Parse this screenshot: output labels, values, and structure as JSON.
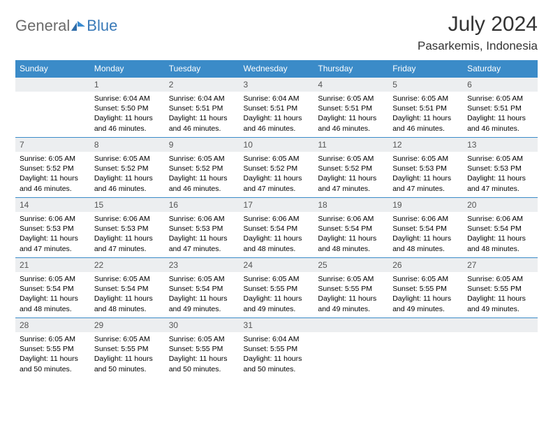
{
  "brand": {
    "word1": "General",
    "word2": "Blue"
  },
  "title": "July 2024",
  "location": "Pasarkemis, Indonesia",
  "colors": {
    "header_bg": "#3b8bc8",
    "header_fg": "#ffffff",
    "daynum_bg": "#eceef0",
    "border": "#3b8bc8",
    "logo_gray": "#6b6b6b",
    "logo_blue": "#3a7ab8"
  },
  "fonts": {
    "title_size": 30,
    "location_size": 17,
    "header_size": 12,
    "daynum_size": 12,
    "body_size": 10.5
  },
  "weekday_labels": [
    "Sunday",
    "Monday",
    "Tuesday",
    "Wednesday",
    "Thursday",
    "Friday",
    "Saturday"
  ],
  "weeks": [
    [
      {
        "n": "",
        "lines": []
      },
      {
        "n": "1",
        "lines": [
          "Sunrise: 6:04 AM",
          "Sunset: 5:50 PM",
          "Daylight: 11 hours and 46 minutes."
        ]
      },
      {
        "n": "2",
        "lines": [
          "Sunrise: 6:04 AM",
          "Sunset: 5:51 PM",
          "Daylight: 11 hours and 46 minutes."
        ]
      },
      {
        "n": "3",
        "lines": [
          "Sunrise: 6:04 AM",
          "Sunset: 5:51 PM",
          "Daylight: 11 hours and 46 minutes."
        ]
      },
      {
        "n": "4",
        "lines": [
          "Sunrise: 6:05 AM",
          "Sunset: 5:51 PM",
          "Daylight: 11 hours and 46 minutes."
        ]
      },
      {
        "n": "5",
        "lines": [
          "Sunrise: 6:05 AM",
          "Sunset: 5:51 PM",
          "Daylight: 11 hours and 46 minutes."
        ]
      },
      {
        "n": "6",
        "lines": [
          "Sunrise: 6:05 AM",
          "Sunset: 5:51 PM",
          "Daylight: 11 hours and 46 minutes."
        ]
      }
    ],
    [
      {
        "n": "7",
        "lines": [
          "Sunrise: 6:05 AM",
          "Sunset: 5:52 PM",
          "Daylight: 11 hours and 46 minutes."
        ]
      },
      {
        "n": "8",
        "lines": [
          "Sunrise: 6:05 AM",
          "Sunset: 5:52 PM",
          "Daylight: 11 hours and 46 minutes."
        ]
      },
      {
        "n": "9",
        "lines": [
          "Sunrise: 6:05 AM",
          "Sunset: 5:52 PM",
          "Daylight: 11 hours and 46 minutes."
        ]
      },
      {
        "n": "10",
        "lines": [
          "Sunrise: 6:05 AM",
          "Sunset: 5:52 PM",
          "Daylight: 11 hours and 47 minutes."
        ]
      },
      {
        "n": "11",
        "lines": [
          "Sunrise: 6:05 AM",
          "Sunset: 5:52 PM",
          "Daylight: 11 hours and 47 minutes."
        ]
      },
      {
        "n": "12",
        "lines": [
          "Sunrise: 6:05 AM",
          "Sunset: 5:53 PM",
          "Daylight: 11 hours and 47 minutes."
        ]
      },
      {
        "n": "13",
        "lines": [
          "Sunrise: 6:05 AM",
          "Sunset: 5:53 PM",
          "Daylight: 11 hours and 47 minutes."
        ]
      }
    ],
    [
      {
        "n": "14",
        "lines": [
          "Sunrise: 6:06 AM",
          "Sunset: 5:53 PM",
          "Daylight: 11 hours and 47 minutes."
        ]
      },
      {
        "n": "15",
        "lines": [
          "Sunrise: 6:06 AM",
          "Sunset: 5:53 PM",
          "Daylight: 11 hours and 47 minutes."
        ]
      },
      {
        "n": "16",
        "lines": [
          "Sunrise: 6:06 AM",
          "Sunset: 5:53 PM",
          "Daylight: 11 hours and 47 minutes."
        ]
      },
      {
        "n": "17",
        "lines": [
          "Sunrise: 6:06 AM",
          "Sunset: 5:54 PM",
          "Daylight: 11 hours and 48 minutes."
        ]
      },
      {
        "n": "18",
        "lines": [
          "Sunrise: 6:06 AM",
          "Sunset: 5:54 PM",
          "Daylight: 11 hours and 48 minutes."
        ]
      },
      {
        "n": "19",
        "lines": [
          "Sunrise: 6:06 AM",
          "Sunset: 5:54 PM",
          "Daylight: 11 hours and 48 minutes."
        ]
      },
      {
        "n": "20",
        "lines": [
          "Sunrise: 6:06 AM",
          "Sunset: 5:54 PM",
          "Daylight: 11 hours and 48 minutes."
        ]
      }
    ],
    [
      {
        "n": "21",
        "lines": [
          "Sunrise: 6:05 AM",
          "Sunset: 5:54 PM",
          "Daylight: 11 hours and 48 minutes."
        ]
      },
      {
        "n": "22",
        "lines": [
          "Sunrise: 6:05 AM",
          "Sunset: 5:54 PM",
          "Daylight: 11 hours and 48 minutes."
        ]
      },
      {
        "n": "23",
        "lines": [
          "Sunrise: 6:05 AM",
          "Sunset: 5:54 PM",
          "Daylight: 11 hours and 49 minutes."
        ]
      },
      {
        "n": "24",
        "lines": [
          "Sunrise: 6:05 AM",
          "Sunset: 5:55 PM",
          "Daylight: 11 hours and 49 minutes."
        ]
      },
      {
        "n": "25",
        "lines": [
          "Sunrise: 6:05 AM",
          "Sunset: 5:55 PM",
          "Daylight: 11 hours and 49 minutes."
        ]
      },
      {
        "n": "26",
        "lines": [
          "Sunrise: 6:05 AM",
          "Sunset: 5:55 PM",
          "Daylight: 11 hours and 49 minutes."
        ]
      },
      {
        "n": "27",
        "lines": [
          "Sunrise: 6:05 AM",
          "Sunset: 5:55 PM",
          "Daylight: 11 hours and 49 minutes."
        ]
      }
    ],
    [
      {
        "n": "28",
        "lines": [
          "Sunrise: 6:05 AM",
          "Sunset: 5:55 PM",
          "Daylight: 11 hours and 50 minutes."
        ]
      },
      {
        "n": "29",
        "lines": [
          "Sunrise: 6:05 AM",
          "Sunset: 5:55 PM",
          "Daylight: 11 hours and 50 minutes."
        ]
      },
      {
        "n": "30",
        "lines": [
          "Sunrise: 6:05 AM",
          "Sunset: 5:55 PM",
          "Daylight: 11 hours and 50 minutes."
        ]
      },
      {
        "n": "31",
        "lines": [
          "Sunrise: 6:04 AM",
          "Sunset: 5:55 PM",
          "Daylight: 11 hours and 50 minutes."
        ]
      },
      {
        "n": "",
        "lines": []
      },
      {
        "n": "",
        "lines": []
      },
      {
        "n": "",
        "lines": []
      }
    ]
  ]
}
